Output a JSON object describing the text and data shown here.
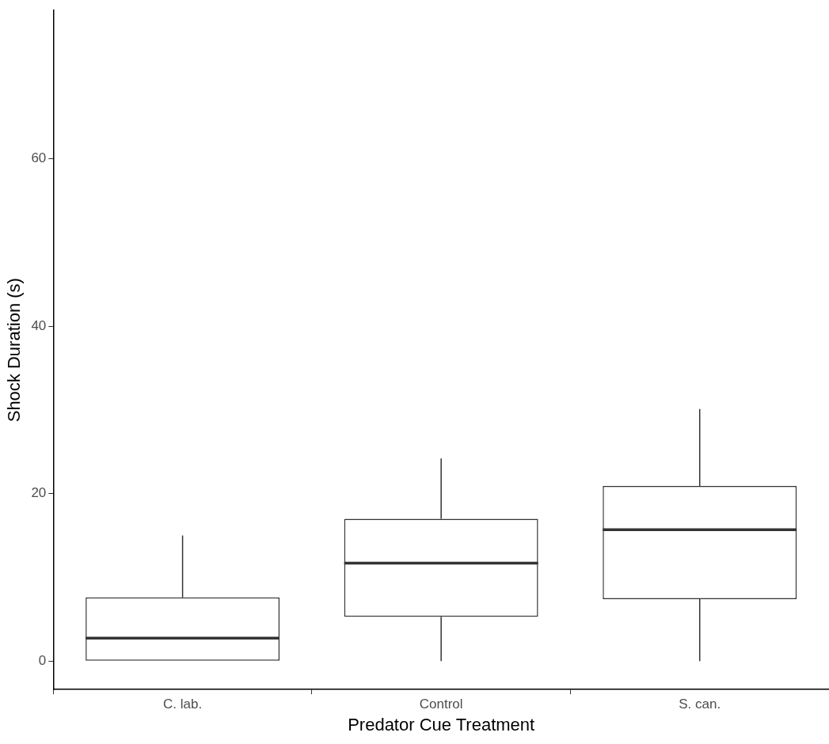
{
  "chart_data": {
    "type": "box",
    "xlabel": "Predator Cue Treatment",
    "ylabel": "Shock Duration (s)",
    "categories": [
      "C. lab.",
      "Control",
      "S. can."
    ],
    "boxes": [
      {
        "low": 0,
        "q1": 0,
        "median": 2.75,
        "q3": 7.6,
        "high": 15
      },
      {
        "low": 0,
        "q1": 5.3,
        "median": 11.7,
        "q3": 17,
        "high": 24.2
      },
      {
        "low": 0,
        "q1": 7.4,
        "median": 15.7,
        "q3": 20.9,
        "high": 30.1
      }
    ],
    "color": "#333333",
    "ylim": [
      -3.4,
      77.7
    ],
    "yticks": [
      0,
      20,
      40,
      60
    ],
    "grid": false,
    "legend": false
  }
}
